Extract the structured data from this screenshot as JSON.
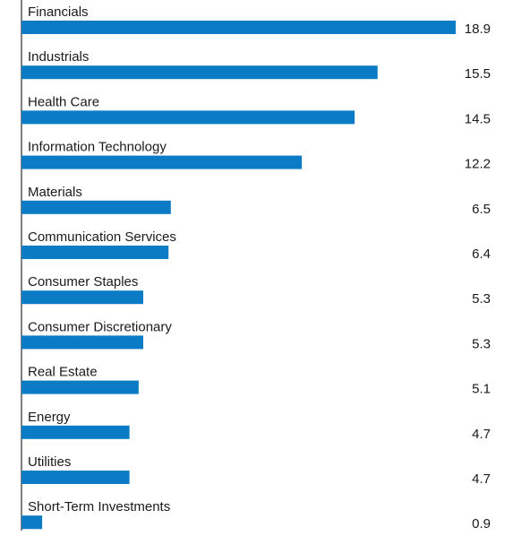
{
  "chart_data": {
    "type": "bar",
    "orientation": "horizontal",
    "categories": [
      "Financials",
      "Industrials",
      "Health Care",
      "Information Technology",
      "Materials",
      "Communication Services",
      "Consumer Staples",
      "Consumer Discretionary",
      "Real Estate",
      "Energy",
      "Utilities",
      "Short-Term Investments"
    ],
    "values": [
      18.9,
      15.5,
      14.5,
      12.2,
      6.5,
      6.4,
      5.3,
      5.3,
      5.1,
      4.7,
      4.7,
      0.9
    ],
    "value_labels": [
      "18.9",
      "15.5",
      "14.5",
      "12.2",
      "6.5",
      "6.4",
      "5.3",
      "5.3",
      "5.1",
      "4.7",
      "4.7",
      "0.9"
    ],
    "title": "",
    "xlabel": "",
    "ylabel": "",
    "xlim": [
      0,
      18.9
    ],
    "grid": false,
    "legend": "none",
    "bar_color": "#0a7bc4",
    "axis_color": "#000000"
  }
}
